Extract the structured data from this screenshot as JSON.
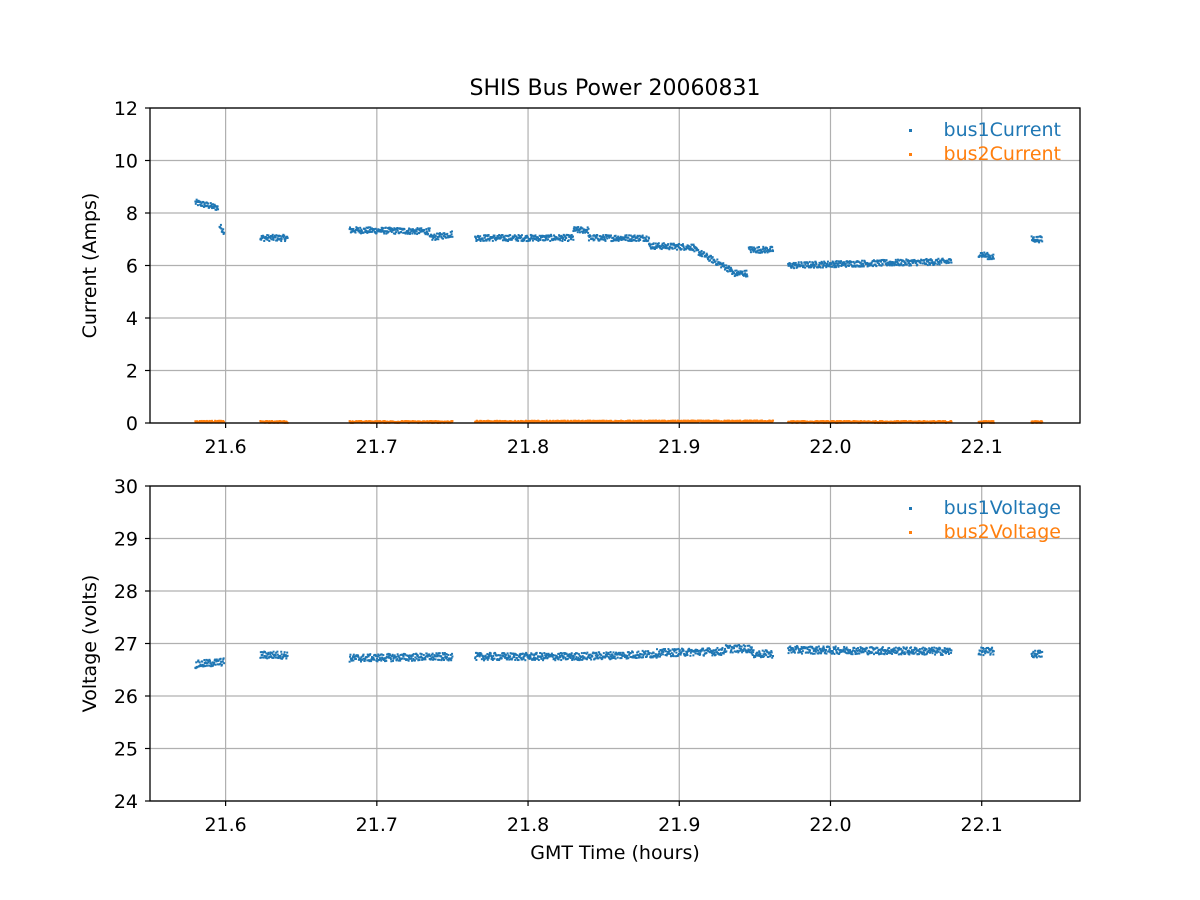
{
  "figure": {
    "title": "SHIS Bus Power 20060831",
    "xlabel": "GMT Time (hours)"
  },
  "chart_data": [
    {
      "type": "scatter",
      "ylabel": "Current (Amps)",
      "xlabel": "",
      "xlim": [
        21.55,
        22.165
      ],
      "ylim": [
        0,
        12
      ],
      "xticks": [
        "21.6",
        "21.7",
        "21.8",
        "21.9",
        "22.0",
        "22.1"
      ],
      "yticks": [
        "0",
        "2",
        "4",
        "6",
        "8",
        "10",
        "12"
      ],
      "grid": true,
      "legend": "top-right",
      "series": [
        {
          "name": "bus1Current",
          "color": "#1f77b4",
          "segments": [
            [
              21.58,
              21.595,
              8.4,
              8.2
            ],
            [
              21.596,
              21.599,
              7.5,
              7.3
            ],
            [
              21.623,
              21.641,
              7.05,
              7.05
            ],
            [
              21.682,
              21.735,
              7.35,
              7.3
            ],
            [
              21.735,
              21.75,
              7.05,
              7.2
            ],
            [
              21.765,
              21.83,
              7.05,
              7.05
            ],
            [
              21.83,
              21.84,
              7.35,
              7.35
            ],
            [
              21.84,
              21.88,
              7.05,
              7.05
            ],
            [
              21.88,
              21.91,
              6.75,
              6.7
            ],
            [
              21.91,
              21.935,
              6.6,
              5.8
            ],
            [
              21.935,
              21.945,
              5.7,
              5.7
            ],
            [
              21.946,
              21.962,
              6.6,
              6.6
            ],
            [
              21.972,
              22.0,
              6.0,
              6.05
            ],
            [
              22.0,
              22.08,
              6.05,
              6.15
            ],
            [
              22.098,
              22.108,
              6.45,
              6.3
            ],
            [
              22.133,
              22.14,
              7.0,
              7.0
            ]
          ]
        },
        {
          "name": "bus2Current",
          "color": "#ff7f0e",
          "segments": [
            [
              21.58,
              21.599,
              0.05,
              0.05
            ],
            [
              21.623,
              21.641,
              0.04,
              0.04
            ],
            [
              21.682,
              21.75,
              0.04,
              0.04
            ],
            [
              21.765,
              21.962,
              0.05,
              0.06
            ],
            [
              21.972,
              22.08,
              0.04,
              0.04
            ],
            [
              22.098,
              22.108,
              0.04,
              0.04
            ],
            [
              22.133,
              22.14,
              0.04,
              0.04
            ]
          ]
        }
      ]
    },
    {
      "type": "scatter",
      "ylabel": "Voltage (volts)",
      "xlabel": "GMT Time (hours)",
      "xlim": [
        21.55,
        22.165
      ],
      "ylim": [
        24,
        30
      ],
      "xticks": [
        "21.6",
        "21.7",
        "21.8",
        "21.9",
        "22.0",
        "22.1"
      ],
      "yticks": [
        "24",
        "25",
        "26",
        "27",
        "28",
        "29",
        "30"
      ],
      "grid": true,
      "legend": "top-right",
      "series": [
        {
          "name": "bus1Voltage",
          "color": "#1f77b4",
          "segments": [
            [
              21.58,
              21.599,
              26.6,
              26.65
            ],
            [
              21.623,
              21.641,
              26.78,
              26.78
            ],
            [
              21.682,
              21.75,
              26.72,
              26.75
            ],
            [
              21.765,
              21.83,
              26.75,
              26.75
            ],
            [
              21.83,
              21.885,
              26.75,
              26.8
            ],
            [
              21.885,
              21.93,
              26.82,
              26.85
            ],
            [
              21.93,
              21.948,
              26.9,
              26.9
            ],
            [
              21.948,
              21.962,
              26.8,
              26.8
            ],
            [
              21.972,
              22.08,
              26.88,
              26.85
            ],
            [
              22.098,
              22.108,
              26.85,
              26.85
            ],
            [
              22.133,
              22.14,
              26.8,
              26.8
            ]
          ]
        },
        {
          "name": "bus2Voltage",
          "color": "#ff7f0e",
          "segments": []
        }
      ]
    }
  ]
}
